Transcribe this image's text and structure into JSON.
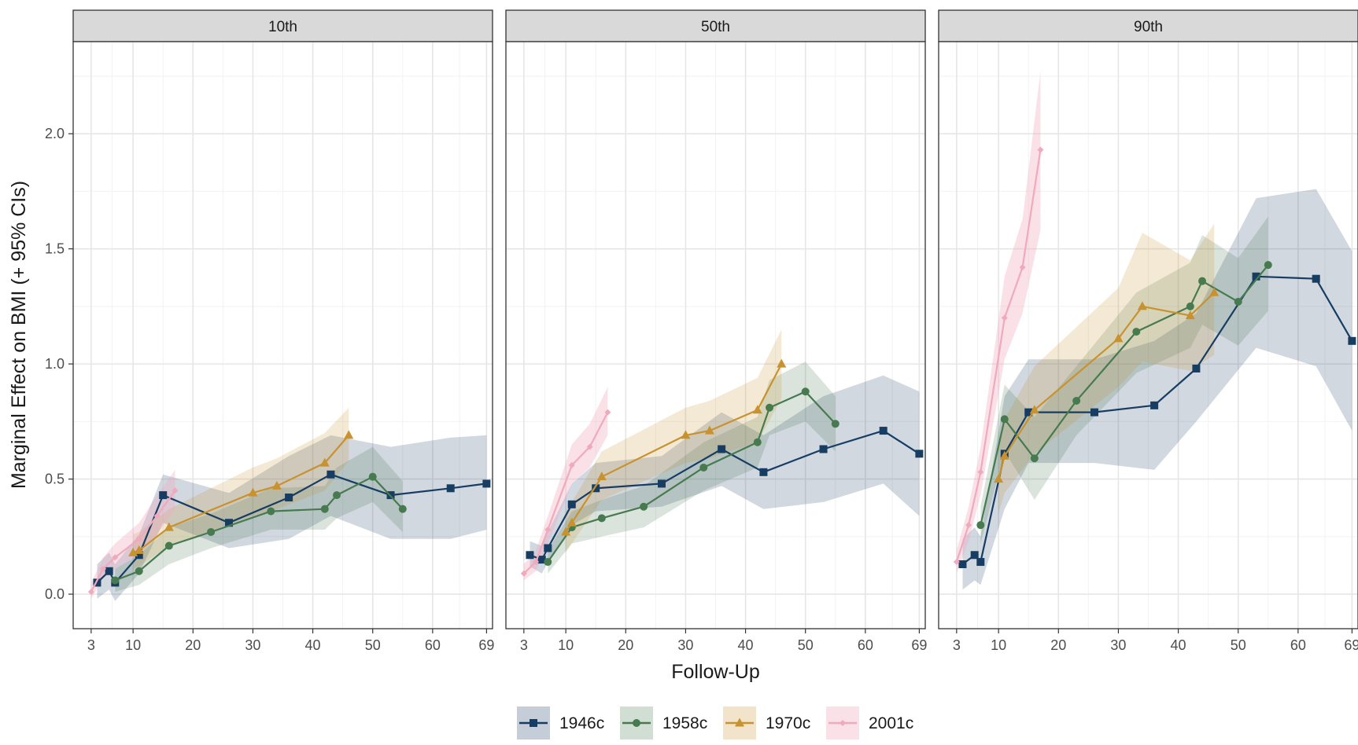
{
  "chart_data": {
    "type": "line",
    "ylabel": "Marginal Effect on BMI (+ 95% CIs)",
    "xlabel": "Follow-Up",
    "x_ticks": [
      3,
      10,
      20,
      30,
      40,
      50,
      60,
      69
    ],
    "y_ticks": [
      0.0,
      0.5,
      1.0,
      1.5,
      2.0
    ],
    "y_tick_labels": [
      "0.0",
      "0.5",
      "1.0",
      "1.5",
      "2.0"
    ],
    "xlim": [
      0,
      70
    ],
    "ylim": [
      -0.15,
      2.4
    ],
    "grid": true,
    "legend_position": "bottom",
    "series_style": [
      {
        "name": "1946c",
        "color": "#173d63",
        "marker": "square"
      },
      {
        "name": "1958c",
        "color": "#477a4f",
        "marker": "circle"
      },
      {
        "name": "1970c",
        "color": "#c8922e",
        "marker": "triangle"
      },
      {
        "name": "2001c",
        "color": "#f0a9bd",
        "marker": "diamond"
      }
    ],
    "panels": [
      {
        "title": "10th",
        "series": [
          {
            "name": "1946c",
            "x": [
              4,
              6,
              7,
              11,
              15,
              26,
              36,
              43,
              53,
              63,
              69
            ],
            "y": [
              0.05,
              0.1,
              0.05,
              0.17,
              0.43,
              0.31,
              0.42,
              0.52,
              0.43,
              0.46,
              0.48
            ],
            "lower": [
              -0.02,
              0.02,
              -0.03,
              0.09,
              0.31,
              0.2,
              0.24,
              0.34,
              0.24,
              0.24,
              0.28
            ],
            "upper": [
              0.13,
              0.18,
              0.13,
              0.26,
              0.52,
              0.44,
              0.6,
              0.69,
              0.64,
              0.68,
              0.69
            ]
          },
          {
            "name": "1958c",
            "x": [
              7,
              11,
              16,
              23,
              33,
              42,
              44,
              50,
              55
            ],
            "y": [
              0.06,
              0.1,
              0.21,
              0.27,
              0.36,
              0.37,
              0.43,
              0.51,
              0.37
            ],
            "lower": [
              0.01,
              0.04,
              0.13,
              0.2,
              0.28,
              0.28,
              0.33,
              0.4,
              0.27
            ],
            "upper": [
              0.11,
              0.17,
              0.29,
              0.35,
              0.46,
              0.47,
              0.55,
              0.64,
              0.49
            ]
          },
          {
            "name": "1970c",
            "x": [
              10,
              11,
              16,
              30,
              34,
              42,
              46
            ],
            "y": [
              0.18,
              0.19,
              0.29,
              0.44,
              0.47,
              0.57,
              0.69
            ],
            "lower": [
              0.11,
              0.12,
              0.21,
              0.34,
              0.37,
              0.45,
              0.58
            ],
            "upper": [
              0.26,
              0.27,
              0.37,
              0.55,
              0.59,
              0.7,
              0.81
            ]
          },
          {
            "name": "2001c",
            "x": [
              3,
              5,
              7,
              11,
              14,
              17
            ],
            "y": [
              0.01,
              0.11,
              0.16,
              0.24,
              0.34,
              0.45
            ],
            "lower": [
              -0.02,
              0.07,
              0.11,
              0.17,
              0.26,
              0.37
            ],
            "upper": [
              0.05,
              0.16,
              0.22,
              0.31,
              0.43,
              0.54
            ]
          }
        ]
      },
      {
        "title": "50th",
        "series": [
          {
            "name": "1946c",
            "x": [
              4,
              6,
              7,
              11,
              15,
              26,
              36,
              43,
              53,
              63,
              69
            ],
            "y": [
              0.17,
              0.15,
              0.2,
              0.39,
              0.46,
              0.48,
              0.63,
              0.53,
              0.63,
              0.71,
              0.61
            ],
            "lower": [
              0.12,
              0.09,
              0.14,
              0.3,
              0.36,
              0.38,
              0.47,
              0.37,
              0.4,
              0.48,
              0.34
            ],
            "upper": [
              0.23,
              0.21,
              0.27,
              0.48,
              0.57,
              0.6,
              0.79,
              0.69,
              0.86,
              0.95,
              0.88
            ]
          },
          {
            "name": "1958c",
            "x": [
              7,
              11,
              16,
              23,
              33,
              42,
              44,
              50,
              55
            ],
            "y": [
              0.14,
              0.29,
              0.33,
              0.38,
              0.55,
              0.66,
              0.81,
              0.88,
              0.74
            ],
            "lower": [
              0.09,
              0.22,
              0.25,
              0.29,
              0.45,
              0.55,
              0.69,
              0.75,
              0.62
            ],
            "upper": [
              0.19,
              0.36,
              0.41,
              0.47,
              0.66,
              0.77,
              0.93,
              1.01,
              0.86
            ]
          },
          {
            "name": "1970c",
            "x": [
              10,
              11,
              16,
              30,
              34,
              42,
              46
            ],
            "y": [
              0.27,
              0.31,
              0.51,
              0.69,
              0.71,
              0.8,
              1.0
            ],
            "lower": [
              0.18,
              0.22,
              0.41,
              0.57,
              0.59,
              0.66,
              0.85
            ],
            "upper": [
              0.36,
              0.4,
              0.62,
              0.81,
              0.84,
              0.94,
              1.15
            ]
          },
          {
            "name": "2001c",
            "x": [
              3,
              5,
              7,
              11,
              14,
              17
            ],
            "y": [
              0.09,
              0.14,
              0.28,
              0.56,
              0.64,
              0.79
            ],
            "lower": [
              0.06,
              0.1,
              0.22,
              0.48,
              0.55,
              0.69
            ],
            "upper": [
              0.13,
              0.19,
              0.34,
              0.65,
              0.74,
              0.9
            ]
          }
        ]
      },
      {
        "title": "90th",
        "series": [
          {
            "name": "1946c",
            "x": [
              4,
              6,
              7,
              11,
              15,
              26,
              36,
              43,
              53,
              63,
              69
            ],
            "y": [
              0.13,
              0.17,
              0.14,
              0.61,
              0.79,
              0.79,
              0.82,
              0.98,
              1.38,
              1.37,
              1.1
            ],
            "lower": [
              0.02,
              0.06,
              0.04,
              0.37,
              0.57,
              0.57,
              0.54,
              0.75,
              1.07,
              0.99,
              0.71
            ],
            "upper": [
              0.24,
              0.29,
              0.25,
              0.86,
              1.02,
              1.02,
              1.1,
              1.22,
              1.72,
              1.76,
              1.49
            ]
          },
          {
            "name": "1958c",
            "x": [
              7,
              11,
              16,
              23,
              33,
              42,
              44,
              50,
              55
            ],
            "y": [
              0.3,
              0.76,
              0.59,
              0.84,
              1.14,
              1.25,
              1.36,
              1.27,
              1.43
            ],
            "lower": [
              0.22,
              0.62,
              0.41,
              0.69,
              0.96,
              1.07,
              1.17,
              1.08,
              1.23
            ],
            "upper": [
              0.38,
              0.91,
              0.77,
              0.99,
              1.31,
              1.44,
              1.56,
              1.46,
              1.64
            ]
          },
          {
            "name": "1970c",
            "x": [
              10,
              11,
              16,
              30,
              34,
              42,
              46
            ],
            "y": [
              0.5,
              0.6,
              0.8,
              1.11,
              1.25,
              1.21,
              1.31
            ],
            "lower": [
              0.35,
              0.44,
              0.61,
              0.9,
              1.01,
              0.97,
              1.04
            ],
            "upper": [
              0.66,
              0.76,
              0.99,
              1.33,
              1.57,
              1.45,
              1.61
            ]
          },
          {
            "name": "2001c",
            "x": [
              3,
              5,
              7,
              11,
              14,
              17
            ],
            "y": [
              0.14,
              0.3,
              0.53,
              1.2,
              1.42,
              1.93
            ],
            "lower": [
              0.09,
              0.23,
              0.43,
              1.02,
              1.22,
              1.58
            ],
            "upper": [
              0.19,
              0.38,
              0.64,
              1.38,
              1.63,
              2.27
            ]
          }
        ]
      }
    ]
  }
}
